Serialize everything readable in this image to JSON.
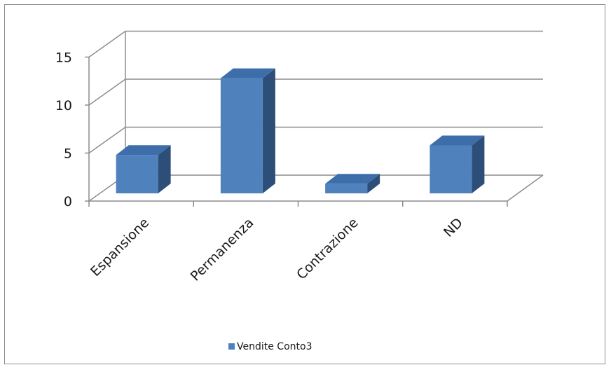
{
  "chart_data": {
    "type": "bar",
    "categories": [
      "Espansione",
      "Permanenza",
      "Contrazione",
      "ND"
    ],
    "series": [
      {
        "name": "Vendite Conto3",
        "values": [
          4,
          12,
          1,
          5
        ]
      }
    ],
    "yticks": [
      "0",
      "5",
      "10",
      "15"
    ],
    "ylim": [
      0,
      15
    ],
    "grid": true,
    "legend": "bottom-left",
    "style": "3d-column",
    "colors": {
      "front": "#4f81bd",
      "top": "#3d6eaa",
      "side": "#2d4e78",
      "grid": "#8c8c8c",
      "axis": "#8c8c8c"
    }
  }
}
